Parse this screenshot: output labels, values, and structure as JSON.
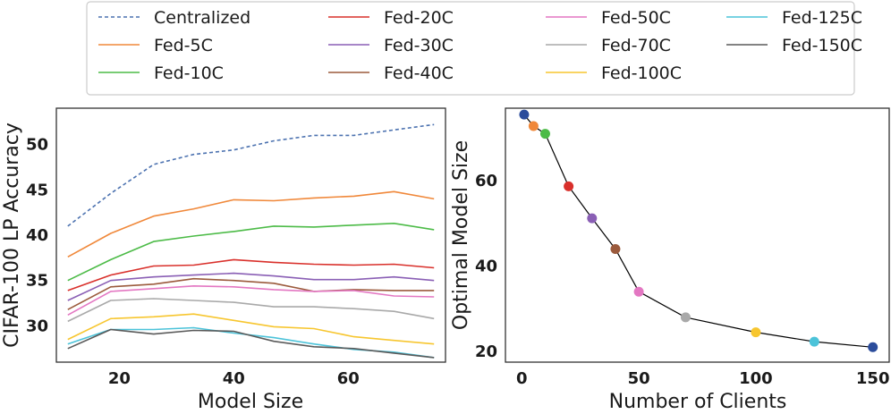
{
  "legend": {
    "entries": [
      {
        "name": "Centralized",
        "color": "#4c72b0",
        "dash": true
      },
      {
        "name": "Fed-5C",
        "color": "#f0883a"
      },
      {
        "name": "Fed-10C",
        "color": "#4cbb47"
      },
      {
        "name": "Fed-20C",
        "color": "#d9302b"
      },
      {
        "name": "Fed-30C",
        "color": "#8a5fb5"
      },
      {
        "name": "Fed-40C",
        "color": "#9b5a3c"
      },
      {
        "name": "Fed-50C",
        "color": "#e377c2"
      },
      {
        "name": "Fed-70C",
        "color": "#a9a9a9"
      },
      {
        "name": "Fed-100C",
        "color": "#f7c62f"
      },
      {
        "name": "Fed-125C",
        "color": "#4cc3d9"
      },
      {
        "name": "Fed-150C",
        "color": "#5a5a5a"
      }
    ]
  },
  "chart_data": [
    {
      "type": "line",
      "xlabel": "Model Size",
      "ylabel": "CIFAR-100 LP Accuracy",
      "xlim": [
        9,
        77
      ],
      "ylim": [
        26,
        54
      ],
      "xticks": [
        20,
        40,
        60
      ],
      "yticks": [
        30,
        35,
        40,
        45,
        50
      ],
      "x": [
        11,
        18.5,
        26,
        33,
        40,
        47,
        54,
        61,
        68,
        75
      ],
      "series": [
        {
          "name": "Centralized",
          "color": "#4c72b0",
          "dash": true,
          "values": [
            41.0,
            44.6,
            47.8,
            48.9,
            49.4,
            50.4,
            51.0,
            51.0,
            51.6,
            52.2
          ]
        },
        {
          "name": "Fed-5C",
          "color": "#f0883a",
          "values": [
            37.6,
            40.2,
            42.1,
            42.9,
            43.9,
            43.8,
            44.1,
            44.3,
            44.8,
            44.0
          ]
        },
        {
          "name": "Fed-10C",
          "color": "#4cbb47",
          "values": [
            35.0,
            37.3,
            39.3,
            39.9,
            40.4,
            41.0,
            40.9,
            41.1,
            41.3,
            40.6
          ]
        },
        {
          "name": "Fed-20C",
          "color": "#d9302b",
          "values": [
            33.9,
            35.6,
            36.6,
            36.7,
            37.3,
            37.0,
            36.8,
            36.7,
            36.8,
            36.4
          ]
        },
        {
          "name": "Fed-30C",
          "color": "#8a5fb5",
          "values": [
            32.8,
            35.0,
            35.4,
            35.6,
            35.8,
            35.5,
            35.1,
            35.1,
            35.4,
            35.0
          ]
        },
        {
          "name": "Fed-40C",
          "color": "#9b5a3c",
          "values": [
            31.8,
            34.3,
            34.6,
            35.2,
            35.0,
            34.7,
            33.8,
            34.0,
            33.9,
            33.9
          ]
        },
        {
          "name": "Fed-50C",
          "color": "#e377c2",
          "values": [
            31.2,
            33.8,
            34.1,
            34.4,
            34.3,
            34.0,
            33.8,
            33.9,
            33.3,
            33.2
          ]
        },
        {
          "name": "Fed-70C",
          "color": "#a9a9a9",
          "values": [
            30.5,
            32.8,
            33.0,
            32.8,
            32.6,
            32.1,
            32.1,
            31.9,
            31.6,
            30.8
          ]
        },
        {
          "name": "Fed-100C",
          "color": "#f7c62f",
          "values": [
            28.5,
            30.8,
            31.0,
            31.3,
            30.6,
            29.9,
            29.7,
            28.8,
            28.4,
            28.0
          ]
        },
        {
          "name": "Fed-125C",
          "color": "#4cc3d9",
          "values": [
            28.0,
            29.6,
            29.6,
            29.8,
            29.2,
            28.7,
            28.0,
            27.4,
            27.1,
            26.5
          ]
        },
        {
          "name": "Fed-150C",
          "color": "#5a5a5a",
          "values": [
            27.5,
            29.6,
            29.1,
            29.5,
            29.4,
            28.3,
            27.7,
            27.5,
            27.0,
            26.5
          ]
        }
      ]
    },
    {
      "type": "scatter",
      "xlabel": "Number of Clients",
      "ylabel": "Optimal Model Size",
      "xlim": [
        -7,
        157
      ],
      "ylim": [
        17.5,
        77
      ],
      "xticks": [
        0,
        50,
        100,
        150
      ],
      "yticks": [
        20,
        40,
        60
      ],
      "line_color": "#000000",
      "points": [
        {
          "x": 1,
          "y": 75.5,
          "color": "#2b4c9b"
        },
        {
          "x": 5,
          "y": 72.8,
          "color": "#f0883a"
        },
        {
          "x": 10,
          "y": 71.0,
          "color": "#4cbb47"
        },
        {
          "x": 20,
          "y": 58.7,
          "color": "#d9302b"
        },
        {
          "x": 30,
          "y": 51.2,
          "color": "#8a5fb5"
        },
        {
          "x": 40,
          "y": 44.0,
          "color": "#9b5a3c"
        },
        {
          "x": 50,
          "y": 34.0,
          "color": "#e377c2"
        },
        {
          "x": 70,
          "y": 28.0,
          "color": "#a9a9a9"
        },
        {
          "x": 100,
          "y": 24.5,
          "color": "#f7c62f"
        },
        {
          "x": 125,
          "y": 22.3,
          "color": "#4cc3d9"
        },
        {
          "x": 150,
          "y": 21.0,
          "color": "#2b4c9b"
        }
      ]
    }
  ]
}
